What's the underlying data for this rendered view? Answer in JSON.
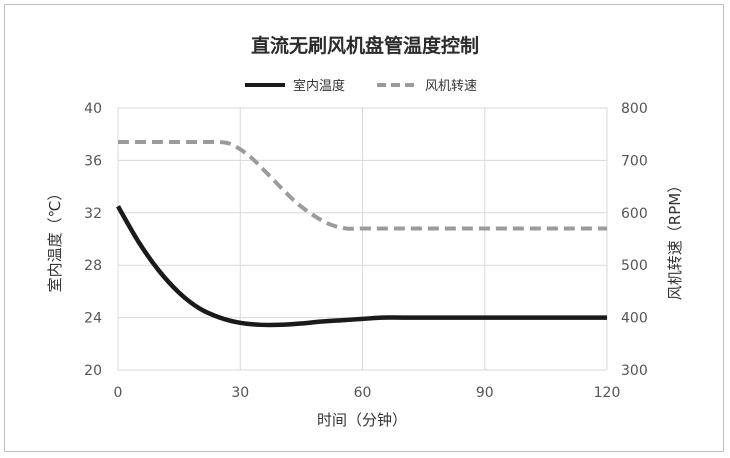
{
  "chart_data": {
    "type": "line",
    "title": "直流无刷风机盘管温度控制",
    "xlabel": "时间（分钟）",
    "ylabel": "室内温度（℃）",
    "y2label": "风机转速（RPM）",
    "xlim": [
      0,
      120
    ],
    "ylim": [
      20,
      40
    ],
    "y2lim": [
      300,
      800
    ],
    "x_ticks": [
      "0",
      "30",
      "60",
      "90",
      "120"
    ],
    "y_ticks": [
      "20",
      "24",
      "28",
      "32",
      "36",
      "40"
    ],
    "y2_ticks": [
      "300",
      "400",
      "500",
      "600",
      "700",
      "800"
    ],
    "grid": true,
    "legend_position": "top",
    "series": [
      {
        "name": "室内温度",
        "axis": "left",
        "style": "solid",
        "color": "#1a1a1a",
        "x": [
          0,
          5,
          10,
          15,
          20,
          25,
          30,
          35,
          40,
          45,
          50,
          55,
          60,
          65,
          70,
          80,
          90,
          100,
          110,
          120
        ],
        "y": [
          32.5,
          29.8,
          27.6,
          25.9,
          24.7,
          24.0,
          23.6,
          23.45,
          23.45,
          23.55,
          23.7,
          23.8,
          23.9,
          24.0,
          24.0,
          24.0,
          24.0,
          24.0,
          24.0,
          24.0
        ]
      },
      {
        "name": "风机转速",
        "axis": "right",
        "style": "dashed",
        "color": "#9b9b9b",
        "x": [
          0,
          10,
          20,
          25,
          28,
          32,
          36,
          40,
          44,
          48,
          52,
          56,
          60,
          70,
          80,
          90,
          100,
          110,
          120
        ],
        "y": [
          735,
          735,
          735,
          735,
          730,
          710,
          680,
          648,
          618,
          595,
          578,
          570,
          570,
          570,
          570,
          570,
          570,
          570,
          570
        ]
      }
    ]
  }
}
